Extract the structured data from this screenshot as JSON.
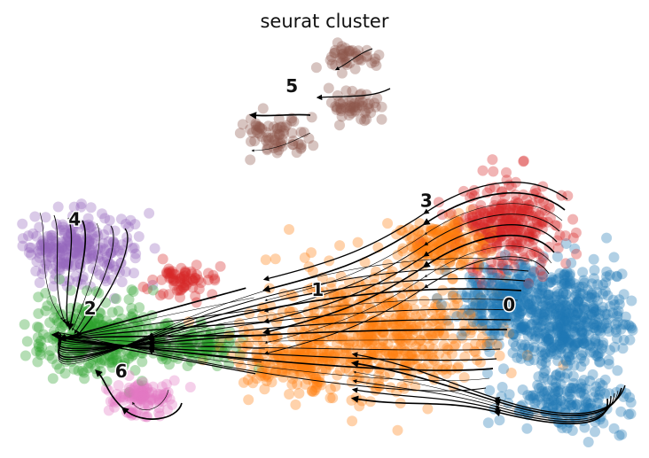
{
  "chart_data": {
    "type": "scatter",
    "title": "seurat cluster",
    "overlay": "velocity-streamlines",
    "legend": "on-data",
    "grid": false,
    "axes_visible": false,
    "clusters": [
      {
        "label": "0",
        "color": "#1f77b4",
        "label_pos": [
          9.5,
          3.7
        ]
      },
      {
        "label": "1",
        "color": "#ff7f0e",
        "label_pos": [
          5.8,
          4.1
        ]
      },
      {
        "label": "2",
        "color": "#2ca02c",
        "label_pos": [
          1.4,
          3.6
        ]
      },
      {
        "label": "3",
        "color": "#d62728",
        "label_pos": [
          7.9,
          6.5
        ]
      },
      {
        "label": "4",
        "color": "#9467bd",
        "label_pos": [
          1.1,
          6.0
        ]
      },
      {
        "label": "5",
        "color": "#8c564b",
        "label_pos": [
          5.3,
          9.6
        ]
      },
      {
        "label": "6",
        "color": "#e377c2",
        "label_pos": [
          2.0,
          1.9
        ]
      }
    ]
  }
}
